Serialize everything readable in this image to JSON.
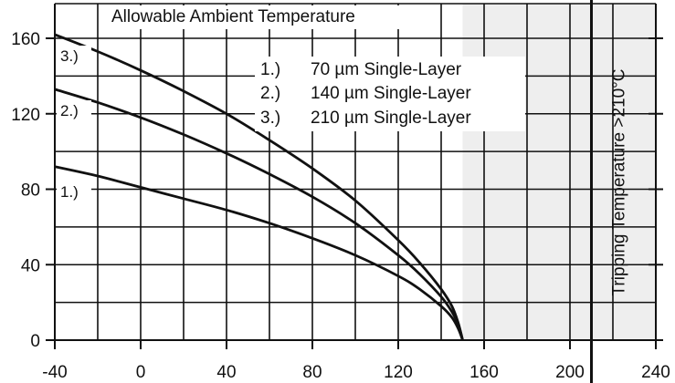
{
  "chart_data": {
    "type": "line",
    "title": "Allowable Ambient Temperature",
    "xlabel": "",
    "ylabel": "",
    "xlim": [
      -40,
      240
    ],
    "ylim": [
      0,
      170
    ],
    "x_ticks": [
      -40,
      0,
      40,
      80,
      120,
      160,
      200,
      240
    ],
    "y_ticks": [
      0,
      40,
      80,
      120,
      160
    ],
    "grid": true,
    "shaded_region": {
      "x_start": 150,
      "x_end": 240,
      "color": "#eeeeee"
    },
    "vertical_line": {
      "x": 210,
      "label": "Tripping Temperature >210°C"
    },
    "legend": {
      "placement": "top-center",
      "entries": [
        {
          "key": "1.)",
          "text": "70 µm Single-Layer"
        },
        {
          "key": "2.)",
          "text": "140 µm Single-Layer"
        },
        {
          "key": "3.)",
          "text": "210 µm Single-Layer"
        }
      ]
    },
    "series": [
      {
        "label": "1.)",
        "x": [
          -40,
          -20,
          0,
          20,
          40,
          60,
          80,
          100,
          120,
          130,
          140,
          145,
          148,
          150
        ],
        "y": [
          92,
          87,
          81,
          75,
          69,
          62,
          54,
          45,
          34,
          27,
          18,
          12,
          6,
          0
        ]
      },
      {
        "label": "2.)",
        "x": [
          -40,
          -20,
          0,
          20,
          40,
          60,
          80,
          100,
          120,
          130,
          140,
          145,
          148,
          150
        ],
        "y": [
          133,
          126,
          118,
          109,
          99,
          88,
          76,
          62,
          45,
          35,
          23,
          15,
          8,
          0
        ]
      },
      {
        "label": "3.)",
        "x": [
          -40,
          -20,
          0,
          20,
          40,
          60,
          80,
          100,
          120,
          130,
          140,
          145,
          148,
          150
        ],
        "y": [
          162,
          153,
          143,
          132,
          120,
          106,
          91,
          74,
          53,
          41,
          27,
          18,
          9,
          0
        ]
      }
    ]
  },
  "colors": {
    "line": "#111111",
    "grid": "#111111",
    "shade": "#eeeeee",
    "background": "#ffffff"
  }
}
